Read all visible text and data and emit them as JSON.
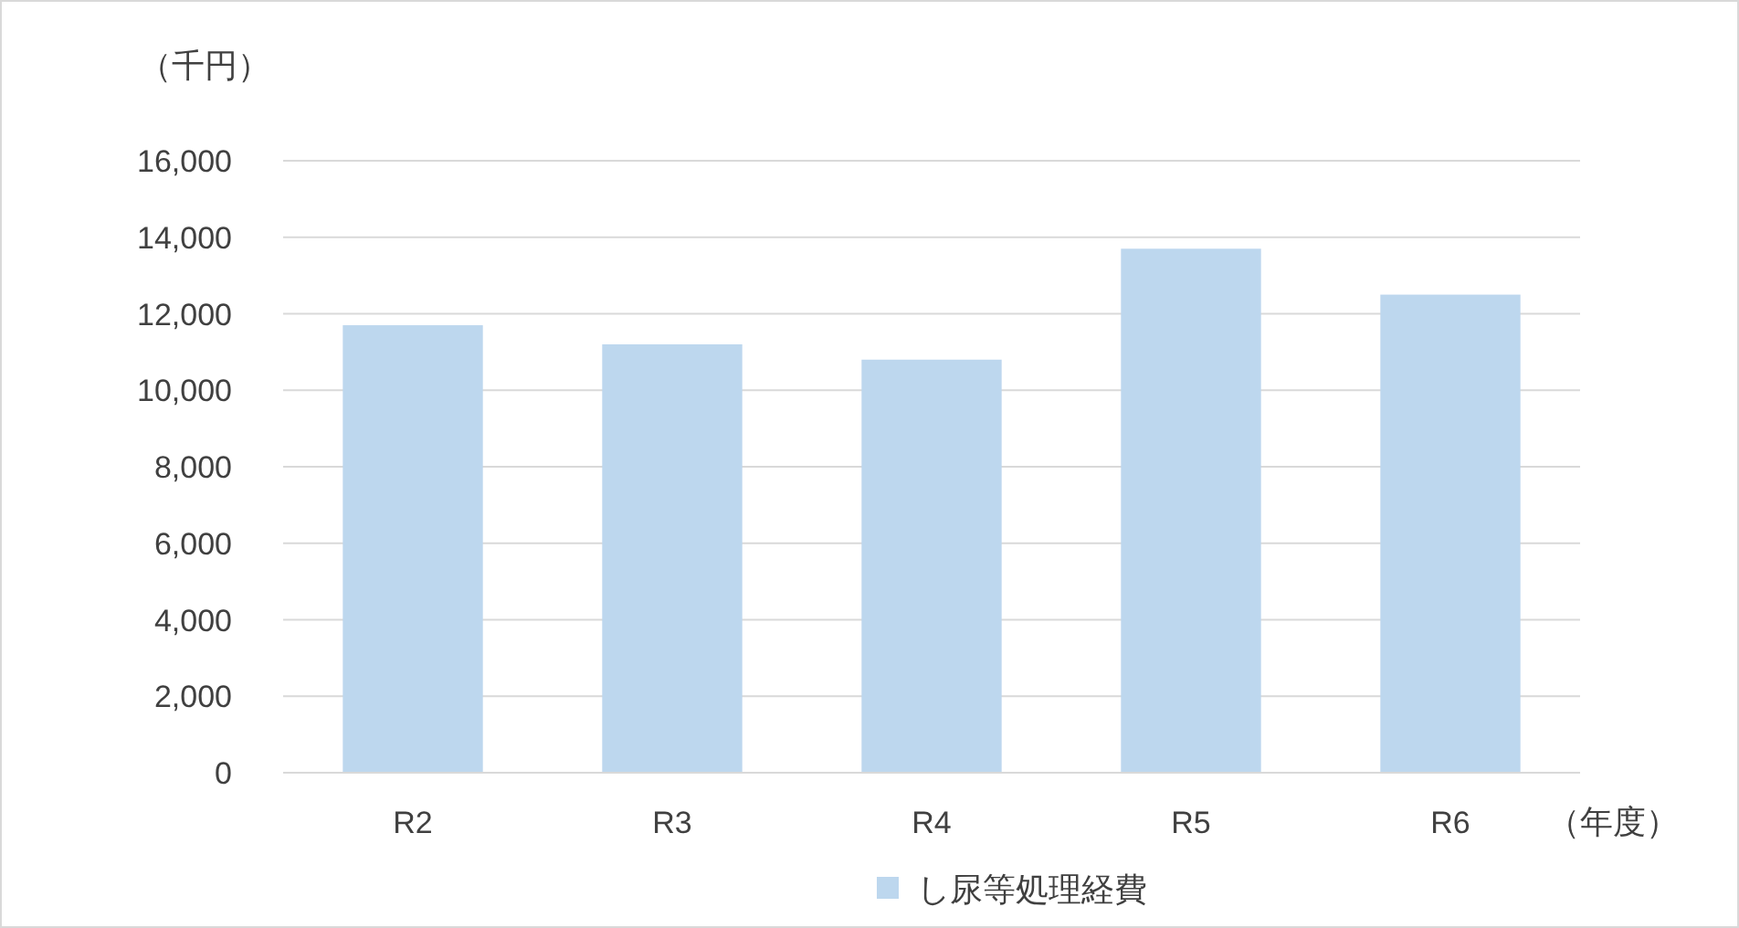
{
  "chart_data": {
    "type": "bar",
    "ylabel": "（千円）",
    "xlabel": "（年度）",
    "categories": [
      "R2",
      "R3",
      "R4",
      "R5",
      "R6"
    ],
    "series": [
      {
        "name": "し尿等処理経費",
        "color": "#bdd7ee",
        "values": [
          11700,
          11200,
          10800,
          13700,
          12500
        ]
      }
    ],
    "ylim": [
      0,
      16000
    ],
    "yticks": [
      {
        "value": 0,
        "label": "0"
      },
      {
        "value": 2000,
        "label": "2,000"
      },
      {
        "value": 4000,
        "label": "4,000"
      },
      {
        "value": 6000,
        "label": "6,000"
      },
      {
        "value": 8000,
        "label": "8,000"
      },
      {
        "value": 10000,
        "label": "10,000"
      },
      {
        "value": 12000,
        "label": "12,000"
      },
      {
        "value": 14000,
        "label": "14,000"
      },
      {
        "value": 16000,
        "label": "16,000"
      }
    ],
    "grid": "y",
    "legend": "bottom"
  }
}
